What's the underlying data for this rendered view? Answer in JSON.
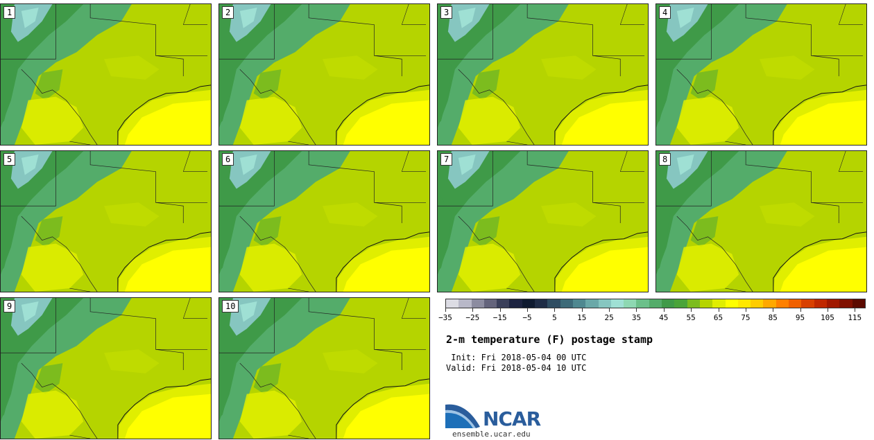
{
  "panels": [
    {
      "label": "1"
    },
    {
      "label": "2"
    },
    {
      "label": "3"
    },
    {
      "label": "4"
    },
    {
      "label": "5"
    },
    {
      "label": "6"
    },
    {
      "label": "7"
    },
    {
      "label": "8"
    },
    {
      "label": "9"
    },
    {
      "label": "10"
    }
  ],
  "colorbar": {
    "colors": [
      "#dcdce4",
      "#b8b8c8",
      "#8c8ca0",
      "#64647c",
      "#3a3f5a",
      "#1c2340",
      "#0f1a30",
      "#1f2c46",
      "#2f4d62",
      "#3d6a78",
      "#4f8890",
      "#6aa8a8",
      "#86c6c0",
      "#9fe0d4",
      "#8ed8b2",
      "#6cc08a",
      "#54ac6a",
      "#3f9a48",
      "#4aa43a",
      "#7cbc1e",
      "#b5d400",
      "#e0ee00",
      "#ffff00",
      "#ffe800",
      "#ffcc00",
      "#ffa800",
      "#ff8000",
      "#f06000",
      "#d84000",
      "#c02800",
      "#a01800",
      "#801000",
      "#5c0a00"
    ],
    "tick_labels": [
      "−35",
      "−25",
      "−15",
      "−5",
      "5",
      "15",
      "25",
      "35",
      "45",
      "55",
      "65",
      "75",
      "85",
      "95",
      "105",
      "115"
    ],
    "tick_min": -35,
    "tick_max": 119,
    "tick_start": -35,
    "tick_step": 10
  },
  "title": "2-m temperature (F) postage stamp",
  "init": " Init: Fri 2018-05-04 00 UTC",
  "valid": "Valid: Fri 2018-05-04 10 UTC",
  "logo": {
    "text": "NCAR"
  },
  "site": "ensemble.ucar.edu"
}
